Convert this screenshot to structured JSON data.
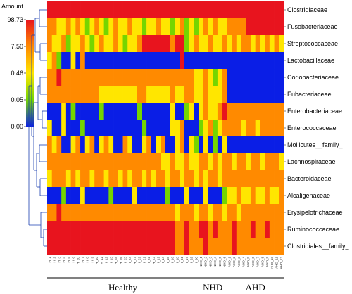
{
  "chart_data": {
    "type": "heatmap",
    "legend": {
      "title": "Amount",
      "ticks": [
        "98.73",
        "7.50",
        "0.46",
        "0.05",
        "0.00"
      ],
      "colors": [
        "#e8141e",
        "#ff8a00",
        "#ffe600",
        "#74d500",
        "#0a1ee6"
      ]
    },
    "rows": [
      "Clostridiaceae",
      "Fusobacteriaceae",
      "Streptococcaceae",
      "Lactobacillaceae",
      "Coriobacteriaceae",
      "Eubacteriaceae",
      "Enterobacteriaceae",
      "Enterococcaceae",
      "Mollicutes__family_",
      "Lachnospiraceae",
      "Bacteroidaceae",
      "Alcaligenaceae",
      "Erysipelotrichaceae",
      "Ruminococcaceae",
      "Clostridiales__family_"
    ],
    "columns": [
      "H_1",
      "H_2",
      "H_3",
      "H_4",
      "H_5",
      "H_6",
      "H_20",
      "H_7",
      "H_8",
      "H_9",
      "H_10",
      "H_11",
      "H_12",
      "H_13",
      "H_28",
      "H_26",
      "H_25",
      "H_24",
      "H_27",
      "H_29",
      "H_21",
      "H_22",
      "H_23",
      "H_19",
      "H_14",
      "H_15",
      "H_16",
      "H_18",
      "H_31",
      "H_17",
      "H_32",
      "H_30",
      "NHD_1",
      "NHD_2",
      "NHD_3",
      "NHD_4",
      "NHD_5",
      "NHD_6",
      "AHD_1",
      "AHD_2",
      "AHD_3",
      "AHD_4",
      "AHD_5",
      "AHD_6",
      "AHD_7",
      "AHD_8",
      "AHD_9",
      "AHD_10",
      "AHD_11",
      "AHD_12"
    ],
    "groups": [
      {
        "name": "Healthy",
        "start": 0,
        "end": 31
      },
      {
        "name": "NHD",
        "start": 32,
        "end": 37
      },
      {
        "name": "AHD",
        "start": 38,
        "end": 49
      }
    ],
    "values": [
      [
        4,
        4,
        4,
        4,
        4,
        4,
        4,
        4,
        4,
        4,
        4,
        4,
        4,
        4,
        4,
        4,
        4,
        4,
        4,
        4,
        4,
        4,
        4,
        4,
        4,
        4,
        4,
        4,
        4,
        4,
        4,
        4,
        4,
        4,
        4,
        4,
        4,
        4,
        4,
        4,
        4,
        4,
        4,
        4,
        4,
        4,
        4,
        4,
        4,
        4
      ],
      [
        3,
        3,
        2,
        2,
        3,
        2,
        3,
        2,
        1,
        2,
        3,
        2,
        1,
        2,
        3,
        2,
        2,
        3,
        2,
        2,
        1,
        2,
        2,
        3,
        2,
        2,
        1,
        2,
        3,
        1,
        2,
        1,
        2,
        3,
        2,
        3,
        2,
        2,
        3,
        3,
        3,
        3,
        4,
        4,
        4,
        4,
        4,
        4,
        4,
        4
      ],
      [
        3,
        2,
        2,
        3,
        1,
        2,
        2,
        3,
        2,
        1,
        2,
        3,
        2,
        2,
        3,
        2,
        1,
        2,
        2,
        3,
        4,
        4,
        4,
        4,
        4,
        4,
        3,
        4,
        4,
        1,
        2,
        3,
        2,
        2,
        3,
        2,
        2,
        3,
        2,
        3,
        2,
        3,
        3,
        2,
        3,
        2,
        3,
        2,
        3,
        2
      ],
      [
        2,
        3,
        1,
        0,
        0,
        2,
        0,
        3,
        0,
        0,
        0,
        0,
        0,
        0,
        0,
        0,
        0,
        0,
        0,
        0,
        0,
        0,
        0,
        0,
        0,
        0,
        0,
        0,
        4,
        0,
        0,
        0,
        0,
        0,
        0,
        0,
        0,
        0,
        0,
        0,
        0,
        0,
        0,
        0,
        0,
        0,
        0,
        0,
        0,
        0
      ],
      [
        3,
        3,
        4,
        3,
        3,
        3,
        3,
        3,
        3,
        3,
        3,
        3,
        3,
        3,
        3,
        3,
        3,
        3,
        3,
        3,
        3,
        3,
        3,
        3,
        3,
        3,
        3,
        3,
        3,
        3,
        3,
        2,
        2,
        3,
        2,
        1,
        2,
        3,
        0,
        0,
        0,
        0,
        0,
        0,
        0,
        0,
        0,
        0,
        0,
        0
      ],
      [
        3,
        3,
        3,
        3,
        3,
        3,
        3,
        3,
        3,
        3,
        3,
        2,
        2,
        2,
        2,
        2,
        2,
        2,
        2,
        3,
        3,
        2,
        2,
        2,
        2,
        2,
        3,
        2,
        2,
        3,
        3,
        2,
        2,
        3,
        2,
        2,
        2,
        3,
        0,
        0,
        0,
        0,
        0,
        0,
        0,
        0,
        0,
        0,
        0,
        0
      ],
      [
        0,
        0,
        0,
        2,
        0,
        1,
        0,
        0,
        0,
        0,
        0,
        1,
        0,
        0,
        0,
        0,
        0,
        0,
        0,
        1,
        0,
        0,
        0,
        0,
        0,
        0,
        2,
        0,
        0,
        1,
        2,
        0,
        2,
        3,
        2,
        2,
        3,
        4,
        3,
        3,
        3,
        3,
        3,
        3,
        3,
        3,
        3,
        3,
        3,
        3
      ],
      [
        2,
        0,
        0,
        2,
        0,
        0,
        0,
        1,
        0,
        0,
        0,
        0,
        0,
        0,
        0,
        0,
        0,
        0,
        0,
        0,
        1,
        0,
        0,
        0,
        0,
        0,
        2,
        2,
        3,
        0,
        0,
        0,
        1,
        2,
        3,
        1,
        2,
        3,
        3,
        3,
        3,
        2,
        3,
        3,
        2,
        3,
        3,
        3,
        3,
        3
      ],
      [
        3,
        2,
        3,
        0,
        0,
        2,
        3,
        0,
        2,
        3,
        0,
        2,
        3,
        2,
        0,
        0,
        3,
        2,
        0,
        0,
        2,
        3,
        0,
        2,
        3,
        0,
        0,
        2,
        3,
        0,
        2,
        1,
        0,
        2,
        0,
        1,
        0,
        2,
        0,
        0,
        0,
        0,
        0,
        0,
        0,
        0,
        0,
        0,
        0,
        0
      ],
      [
        3,
        3,
        3,
        3,
        3,
        3,
        3,
        3,
        3,
        3,
        3,
        3,
        3,
        3,
        3,
        3,
        3,
        3,
        3,
        3,
        3,
        3,
        3,
        3,
        2,
        2,
        3,
        2,
        2,
        3,
        2,
        2,
        3,
        3,
        2,
        3,
        2,
        3,
        3,
        2,
        3,
        3,
        2,
        3,
        3,
        2,
        3,
        3,
        3,
        2
      ],
      [
        2,
        3,
        3,
        3,
        2,
        3,
        2,
        3,
        3,
        2,
        3,
        3,
        2,
        3,
        3,
        2,
        3,
        2,
        3,
        3,
        2,
        3,
        2,
        3,
        3,
        2,
        3,
        3,
        2,
        3,
        3,
        2,
        3,
        2,
        3,
        3,
        2,
        3,
        3,
        3,
        3,
        3,
        3,
        3,
        3,
        3,
        3,
        3,
        3,
        3
      ],
      [
        0,
        0,
        0,
        1,
        0,
        0,
        0,
        2,
        0,
        0,
        0,
        0,
        0,
        1,
        0,
        0,
        0,
        0,
        2,
        0,
        0,
        0,
        0,
        0,
        0,
        1,
        0,
        0,
        0,
        2,
        0,
        0,
        0,
        2,
        0,
        0,
        0,
        1,
        2,
        2,
        3,
        2,
        2,
        3,
        2,
        2,
        3,
        2,
        2,
        3
      ],
      [
        3,
        3,
        4,
        3,
        3,
        3,
        3,
        3,
        3,
        3,
        3,
        3,
        3,
        3,
        3,
        3,
        3,
        3,
        3,
        3,
        3,
        3,
        3,
        3,
        3,
        3,
        3,
        2,
        3,
        3,
        3,
        2,
        3,
        3,
        2,
        3,
        3,
        2,
        3,
        3,
        2,
        3,
        3,
        3,
        3,
        3,
        3,
        3,
        3,
        3
      ],
      [
        4,
        4,
        4,
        4,
        4,
        4,
        4,
        4,
        4,
        4,
        4,
        4,
        4,
        4,
        4,
        4,
        4,
        4,
        4,
        4,
        4,
        4,
        4,
        4,
        4,
        4,
        4,
        3,
        3,
        4,
        3,
        3,
        4,
        4,
        3,
        4,
        3,
        3,
        3,
        4,
        3,
        3,
        3,
        4,
        3,
        3,
        4,
        3,
        3,
        3
      ],
      [
        4,
        4,
        4,
        4,
        4,
        4,
        4,
        4,
        4,
        4,
        4,
        4,
        4,
        4,
        4,
        4,
        4,
        4,
        4,
        4,
        4,
        4,
        4,
        4,
        4,
        4,
        4,
        3,
        3,
        4,
        3,
        3,
        3,
        4,
        3,
        3,
        3,
        3,
        3,
        4,
        3,
        3,
        3,
        3,
        3,
        3,
        3,
        3,
        3,
        3
      ]
    ]
  }
}
